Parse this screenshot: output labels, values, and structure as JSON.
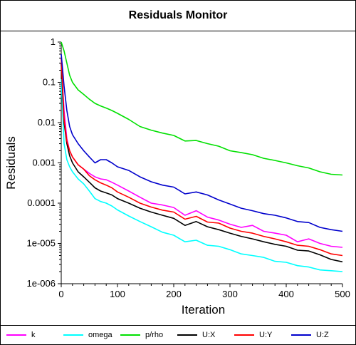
{
  "chart_data": {
    "type": "line",
    "title": "Residuals Monitor",
    "xlabel": "Iteration",
    "ylabel": "Residuals",
    "x_scale": "linear",
    "y_scale": "log",
    "xlim": [
      0,
      500
    ],
    "ylim": [
      1e-06,
      1
    ],
    "x_ticks": [
      "0",
      "100",
      "200",
      "300",
      "400",
      "500"
    ],
    "y_ticks": [
      "1",
      "0.1",
      "0.01",
      "0.001",
      "0.0001",
      "1e-005",
      "1e-006"
    ],
    "grid": false,
    "legend_position": "bottom",
    "x": [
      0,
      5,
      10,
      15,
      20,
      30,
      40,
      50,
      60,
      70,
      80,
      90,
      100,
      120,
      140,
      160,
      180,
      200,
      220,
      240,
      260,
      280,
      300,
      320,
      340,
      360,
      380,
      400,
      420,
      440,
      460,
      480,
      500
    ],
    "series": [
      {
        "name": "k",
        "color": "#ff00ff",
        "values": [
          0.3,
          0.02,
          0.004,
          0.002,
          0.0014,
          0.0009,
          0.0007,
          0.00055,
          0.00045,
          0.0004,
          0.00038,
          0.00033,
          0.00028,
          0.0002,
          0.00014,
          0.0001,
          9e-05,
          7.8e-05,
          5e-05,
          6.5e-05,
          4.5e-05,
          3.8e-05,
          3e-05,
          2.5e-05,
          2.8e-05,
          2e-05,
          1.8e-05,
          1.6e-05,
          1.1e-05,
          1.3e-05,
          1e-05,
          8.5e-06,
          8e-06
        ]
      },
      {
        "name": "omega",
        "color": "#00ffff",
        "values": [
          0.12,
          0.003,
          0.0012,
          0.0008,
          0.0006,
          0.0004,
          0.0003,
          0.0002,
          0.00013,
          0.00011,
          0.0001,
          8.5e-05,
          6.8e-05,
          4.8e-05,
          3.5e-05,
          2.6e-05,
          1.9e-05,
          1.6e-05,
          1.1e-05,
          1.2e-05,
          9e-06,
          8.5e-06,
          7e-06,
          5.5e-06,
          5e-06,
          4.5e-06,
          3.6e-06,
          3.4e-06,
          2.8e-06,
          2.6e-06,
          2.2e-06,
          2.1e-06,
          2e-06
        ]
      },
      {
        "name": "p/rho",
        "color": "#00e000",
        "values": [
          1.0,
          0.6,
          0.3,
          0.15,
          0.1,
          0.065,
          0.05,
          0.038,
          0.03,
          0.026,
          0.023,
          0.02,
          0.017,
          0.012,
          0.008,
          0.0065,
          0.0055,
          0.0048,
          0.0035,
          0.0036,
          0.003,
          0.0026,
          0.002,
          0.0018,
          0.0016,
          0.0013,
          0.00115,
          0.001,
          0.00085,
          0.00075,
          0.0006,
          0.00052,
          0.0005
        ]
      },
      {
        "name": "U:X",
        "color": "#000000",
        "values": [
          0.3,
          0.01,
          0.003,
          0.0015,
          0.001,
          0.0006,
          0.00045,
          0.00033,
          0.00024,
          0.0002,
          0.00018,
          0.00016,
          0.00013,
          0.0001,
          7.5e-05,
          6e-05,
          5e-05,
          4.2e-05,
          2.8e-05,
          3.5e-05,
          2.6e-05,
          2.2e-05,
          1.8e-05,
          1.5e-05,
          1.3e-05,
          1.1e-05,
          9.5e-06,
          8.5e-06,
          6.8e-06,
          6.5e-06,
          5.2e-06,
          4e-06,
          3.5e-06
        ]
      },
      {
        "name": "U:Y",
        "color": "#ff0000",
        "values": [
          0.4,
          0.012,
          0.0035,
          0.002,
          0.0014,
          0.0009,
          0.0007,
          0.00048,
          0.00038,
          0.00032,
          0.00028,
          0.00024,
          0.00019,
          0.00014,
          0.0001,
          8e-05,
          6.7e-05,
          6e-05,
          4e-05,
          4.7e-05,
          3.4e-05,
          3.2e-05,
          2.4e-05,
          2e-05,
          1.8e-05,
          1.5e-05,
          1.3e-05,
          1.1e-05,
          9e-06,
          8.5e-06,
          7e-06,
          5.5e-06,
          5e-06
        ]
      },
      {
        "name": "U:Z",
        "color": "#0000cc",
        "values": [
          0.5,
          0.08,
          0.02,
          0.008,
          0.005,
          0.003,
          0.002,
          0.0014,
          0.001,
          0.0012,
          0.0012,
          0.001,
          0.0008,
          0.00065,
          0.00045,
          0.00034,
          0.00028,
          0.00025,
          0.00017,
          0.00019,
          0.00016,
          0.00012,
          9.5e-05,
          7.5e-05,
          6.5e-05,
          5.5e-05,
          5e-05,
          4.3e-05,
          3.5e-05,
          3.3e-05,
          2.5e-05,
          2.2e-05,
          2e-05
        ]
      }
    ]
  }
}
